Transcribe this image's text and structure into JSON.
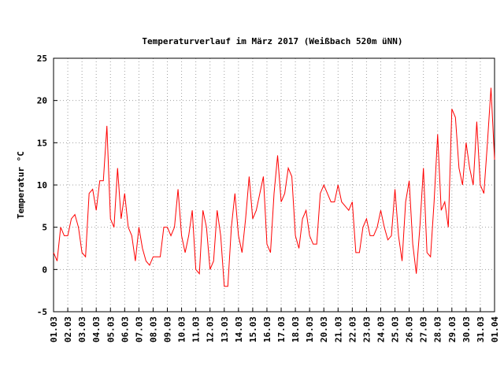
{
  "chart_data": {
    "type": "line",
    "title": "Temperaturverlauf im März 2017 (Weißbach 520m üNN)",
    "y_label": "Temperatur °C",
    "categories": [
      "01.03",
      null,
      null,
      null,
      "02.03",
      null,
      null,
      null,
      "03.03",
      null,
      null,
      null,
      "04.03",
      null,
      null,
      null,
      "05.03",
      null,
      null,
      null,
      "06.03",
      null,
      null,
      null,
      "07.03",
      null,
      null,
      null,
      "08.03",
      null,
      null,
      null,
      "09.03",
      null,
      null,
      null,
      "10.03",
      null,
      null,
      null,
      "11.03",
      null,
      null,
      null,
      "12.03",
      null,
      null,
      null,
      "13.03",
      null,
      null,
      null,
      "14.03",
      null,
      null,
      null,
      "15.03",
      null,
      null,
      null,
      "16.03",
      null,
      null,
      null,
      "17.03",
      null,
      null,
      null,
      "18.03",
      null,
      null,
      null,
      "19.03",
      null,
      null,
      null,
      "20.03",
      null,
      null,
      null,
      "21.03",
      null,
      null,
      null,
      "22.03",
      null,
      null,
      null,
      "23.03",
      null,
      null,
      null,
      "24.03",
      null,
      null,
      null,
      "25.03",
      null,
      null,
      null,
      "26.03",
      null,
      null,
      null,
      "27.03",
      null,
      null,
      null,
      "28.03",
      null,
      null,
      null,
      "29.03",
      null,
      null,
      null,
      "30.03",
      null,
      null,
      null,
      "31.03",
      null,
      null,
      null,
      "01.04"
    ],
    "series": [
      {
        "name": "Temperatur",
        "color": "#ff0000",
        "values": [
          2,
          1,
          5,
          4,
          4,
          6,
          6.5,
          5,
          2,
          1.5,
          9,
          9.5,
          7,
          10.5,
          10.5,
          17,
          6,
          5,
          12,
          6,
          9,
          5,
          4,
          1,
          5,
          2.5,
          1,
          0.5,
          1.5,
          1.5,
          1.5,
          5,
          5,
          4,
          5,
          9.5,
          4,
          2,
          4,
          7,
          0,
          -0.5,
          7,
          5,
          0,
          1,
          7,
          4,
          -2,
          -2,
          5,
          9,
          4,
          2,
          6,
          11,
          6,
          7,
          9,
          11,
          3,
          2,
          9,
          13.5,
          8,
          9,
          12,
          11,
          4,
          2.5,
          6,
          7,
          4,
          3,
          3,
          9,
          10,
          9,
          8,
          8,
          10,
          8,
          7.5,
          7,
          8,
          2,
          2,
          5,
          6,
          4,
          4,
          5,
          7,
          5,
          3.5,
          4,
          9.5,
          4,
          1,
          8,
          10.5,
          3,
          -0.5,
          5,
          12,
          2,
          1.5,
          8,
          16,
          7,
          8,
          5,
          19,
          18,
          12,
          10,
          15,
          12,
          10,
          17.5,
          10,
          9,
          15,
          21.5,
          13
        ]
      }
    ],
    "ylim": [
      -5,
      25
    ],
    "yticks": [
      -5,
      0,
      5,
      10,
      15,
      20,
      25
    ],
    "grid": true
  }
}
